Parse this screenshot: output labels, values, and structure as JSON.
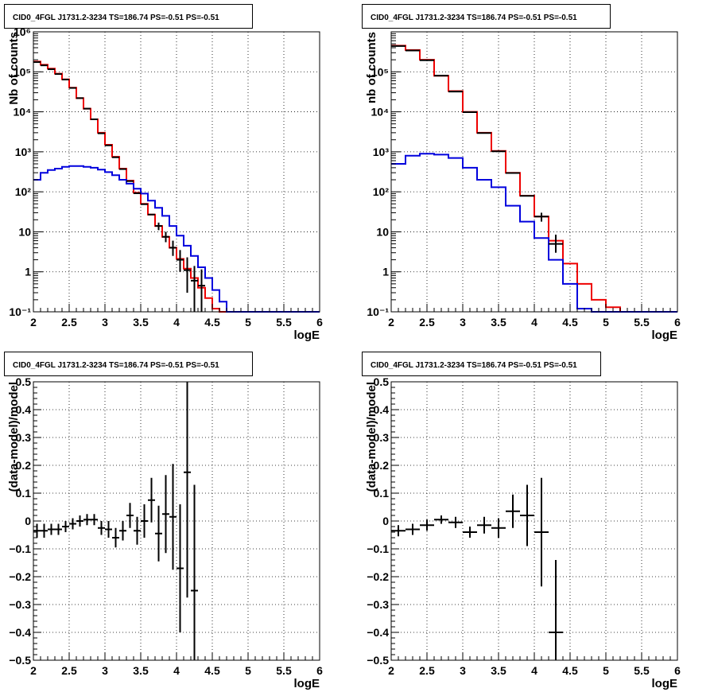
{
  "colors": {
    "data": "#000000",
    "model_total": "#ee0000",
    "model_source": "#0000dd",
    "grid": "#000000"
  },
  "chart_data": [
    {
      "type": "line",
      "title": "CID0_4FGL J1731.2-3234 TS=186.74 PS=-0.51 PS=-0.51",
      "xlabel": "logE",
      "ylabel": "Nb of counts",
      "xlim": [
        2,
        6
      ],
      "ylim": [
        0.1,
        1000000
      ],
      "yscale": "log",
      "grid": true,
      "x_ticks": [
        "2",
        "2.5",
        "3",
        "3.5",
        "4",
        "4.5",
        "5",
        "5.5",
        "6"
      ],
      "y_ticks": [
        "10⁻¹",
        "1",
        "10",
        "10²",
        "10³",
        "10⁴",
        "10⁵",
        "10⁶"
      ],
      "bin_edges": [
        2.0,
        2.1,
        2.2,
        2.3,
        2.4,
        2.5,
        2.6,
        2.7,
        2.8,
        2.9,
        3.0,
        3.1,
        3.2,
        3.3,
        3.4,
        3.5,
        3.6,
        3.7,
        3.8,
        3.9,
        4.0,
        4.1,
        4.2,
        4.3,
        4.4,
        4.5,
        4.6,
        4.7,
        4.8,
        4.9,
        5.0,
        5.1,
        5.2,
        5.3,
        5.4,
        5.5,
        5.6,
        5.7,
        5.8,
        5.9,
        6.0
      ],
      "series": [
        {
          "kind": "step",
          "color": "red",
          "values": [
            180000,
            150000,
            120000,
            90000,
            65000,
            40000,
            22000,
            12000,
            6500,
            3000,
            1500,
            750,
            380,
            190,
            95,
            50,
            27,
            14,
            7.5,
            4,
            2.1,
            1.2,
            0.7,
            0.4,
            0.22,
            0.12,
            0.1,
            0.1,
            0.1,
            0.1,
            0.1,
            0.1,
            0.1,
            0.1,
            0.1,
            0.1,
            0.1,
            0.1,
            0.1,
            0.1
          ]
        },
        {
          "kind": "step",
          "color": "blue",
          "values": [
            200,
            300,
            350,
            380,
            420,
            440,
            440,
            420,
            400,
            360,
            310,
            260,
            200,
            160,
            120,
            90,
            60,
            40,
            25,
            14,
            8,
            4.5,
            2.5,
            1.3,
            0.7,
            0.35,
            0.18,
            0.1,
            0.1,
            0.1,
            0.1,
            0.1,
            0.1,
            0.1,
            0.1,
            0.1,
            0.1,
            0.1,
            0.1,
            0.1
          ]
        },
        {
          "kind": "points",
          "color": "black",
          "x": [
            2.05,
            2.15,
            2.25,
            2.35,
            2.45,
            2.55,
            2.65,
            2.75,
            2.85,
            2.95,
            3.05,
            3.15,
            3.25,
            3.35,
            3.45,
            3.55,
            3.65,
            3.75,
            3.85,
            3.95,
            4.05,
            4.15,
            4.25,
            4.35
          ],
          "y": [
            175000,
            145000,
            116000,
            88000,
            64000,
            39500,
            22000,
            12000,
            6500,
            2900,
            1450,
            730,
            370,
            185,
            92,
            49,
            27,
            14,
            7.5,
            4,
            2,
            1.1,
            0.6,
            0.45
          ],
          "yerr_low": [
            0,
            0,
            0,
            0,
            0,
            0,
            0,
            0,
            0,
            0,
            0,
            0,
            0,
            0,
            0,
            0,
            0,
            3,
            2,
            1.5,
            1,
            0.8,
            0.5,
            0.44
          ],
          "yerr_high": [
            0,
            0,
            0,
            0,
            0,
            0,
            0,
            0,
            0,
            0,
            0,
            0,
            0,
            0,
            0,
            0,
            0,
            3,
            2.5,
            2,
            1.5,
            1.2,
            0.8,
            0.7
          ]
        }
      ]
    },
    {
      "type": "line",
      "title": "CID0_4FGL J1731.2-3234 TS=186.74 PS=-0.51 PS=-0.51",
      "xlabel": "logE",
      "ylabel": "nb of counts",
      "xlim": [
        2,
        6
      ],
      "ylim": [
        0.1,
        1000000
      ],
      "yscale": "log",
      "grid": true,
      "x_ticks": [
        "2",
        "2.5",
        "3",
        "3.5",
        "4",
        "4.5",
        "5",
        "5.5",
        "6"
      ],
      "y_ticks": [
        "10⁻¹",
        "1",
        "10",
        "10²",
        "10³",
        "10⁴",
        "10⁵"
      ],
      "bin_edges": [
        2.0,
        2.2,
        2.4,
        2.6,
        2.8,
        3.0,
        3.2,
        3.4,
        3.6,
        3.8,
        4.0,
        4.2,
        4.4,
        4.6,
        4.8,
        5.0,
        5.2,
        5.4,
        5.6,
        5.8,
        6.0
      ],
      "series": [
        {
          "kind": "step",
          "color": "red",
          "values": [
            450000,
            350000,
            200000,
            80000,
            33000,
            10000,
            3000,
            1050,
            300,
            80,
            24,
            6,
            1.6,
            0.5,
            0.2,
            0.13,
            0.1,
            0.1,
            0.1,
            0.1
          ]
        },
        {
          "kind": "step",
          "color": "blue",
          "values": [
            500,
            800,
            900,
            850,
            700,
            400,
            200,
            130,
            45,
            18,
            7,
            2,
            0.5,
            0.12,
            0.1,
            0.1,
            0.1,
            0.1,
            0.1,
            0.1
          ]
        },
        {
          "kind": "points",
          "color": "black",
          "x": [
            2.1,
            2.3,
            2.5,
            2.7,
            2.9,
            3.1,
            3.3,
            3.5,
            3.7,
            3.9,
            4.1,
            4.3
          ],
          "y": [
            440000,
            340000,
            195000,
            80000,
            32000,
            9800,
            2950,
            1030,
            295,
            79,
            24,
            5
          ],
          "yerr_low": [
            0,
            0,
            0,
            0,
            0,
            0,
            0,
            0,
            0,
            0,
            6,
            2
          ],
          "yerr_high": [
            0,
            0,
            0,
            0,
            0,
            0,
            0,
            0,
            0,
            0,
            6,
            3.5
          ]
        }
      ]
    },
    {
      "type": "scatter",
      "title": "CID0_4FGL J1731.2-3234 TS=186.74 PS=-0.51 PS=-0.51",
      "xlabel": "logE",
      "ylabel": "(data-model)/model",
      "xlim": [
        2,
        6
      ],
      "ylim": [
        -0.5,
        0.5
      ],
      "grid": true,
      "x_ticks": [
        "2",
        "2.5",
        "3",
        "3.5",
        "4",
        "4.5",
        "5",
        "5.5",
        "6"
      ],
      "y_ticks": [
        "−0.5",
        "−0.4",
        "−0.3",
        "−0.2",
        "−0.1",
        "0",
        "0.1",
        "0.2",
        "0.3",
        "0.4",
        "0.5"
      ],
      "bin_width": 0.1,
      "x": [
        2.05,
        2.15,
        2.25,
        2.35,
        2.45,
        2.55,
        2.65,
        2.75,
        2.85,
        2.95,
        3.05,
        3.15,
        3.25,
        3.35,
        3.45,
        3.55,
        3.65,
        3.75,
        3.85,
        3.95,
        4.05,
        4.15,
        4.25
      ],
      "y": [
        -0.035,
        -0.035,
        -0.03,
        -0.03,
        -0.02,
        -0.01,
        0.0,
        0.005,
        0.005,
        -0.025,
        -0.03,
        -0.06,
        -0.035,
        0.02,
        -0.035,
        0.0,
        0.075,
        -0.045,
        0.025,
        0.015,
        -0.17,
        0.175,
        -0.25
      ],
      "yerr": [
        0.025,
        0.025,
        0.02,
        0.02,
        0.02,
        0.02,
        0.02,
        0.02,
        0.02,
        0.025,
        0.03,
        0.035,
        0.035,
        0.045,
        0.05,
        0.06,
        0.08,
        0.1,
        0.14,
        0.19,
        0.23,
        0.45,
        0.38
      ]
    },
    {
      "type": "scatter",
      "title": "CID0_4FGL J1731.2-3234 TS=186.74 PS=-0.51 PS=-0.51",
      "xlabel": "logE",
      "ylabel": "(data-model)/model",
      "xlim": [
        2,
        6
      ],
      "ylim": [
        -0.5,
        0.5
      ],
      "grid": true,
      "x_ticks": [
        "2",
        "2.5",
        "3",
        "3.5",
        "4",
        "4.5",
        "5",
        "5.5",
        "6"
      ],
      "y_ticks": [
        "−0.5",
        "−0.4",
        "−0.3",
        "−0.2",
        "−0.1",
        "0",
        "0.1",
        "0.2",
        "0.3",
        "0.4",
        "0.5"
      ],
      "bin_width": 0.2,
      "x": [
        2.1,
        2.3,
        2.5,
        2.7,
        2.9,
        3.1,
        3.3,
        3.5,
        3.7,
        3.9,
        4.1,
        4.3
      ],
      "y": [
        -0.035,
        -0.03,
        -0.015,
        0.005,
        -0.005,
        -0.04,
        -0.015,
        -0.025,
        0.035,
        0.02,
        -0.04,
        -0.4
      ],
      "yerr": [
        0.02,
        0.02,
        0.02,
        0.015,
        0.02,
        0.02,
        0.03,
        0.035,
        0.06,
        0.11,
        0.195,
        0.26
      ]
    }
  ]
}
